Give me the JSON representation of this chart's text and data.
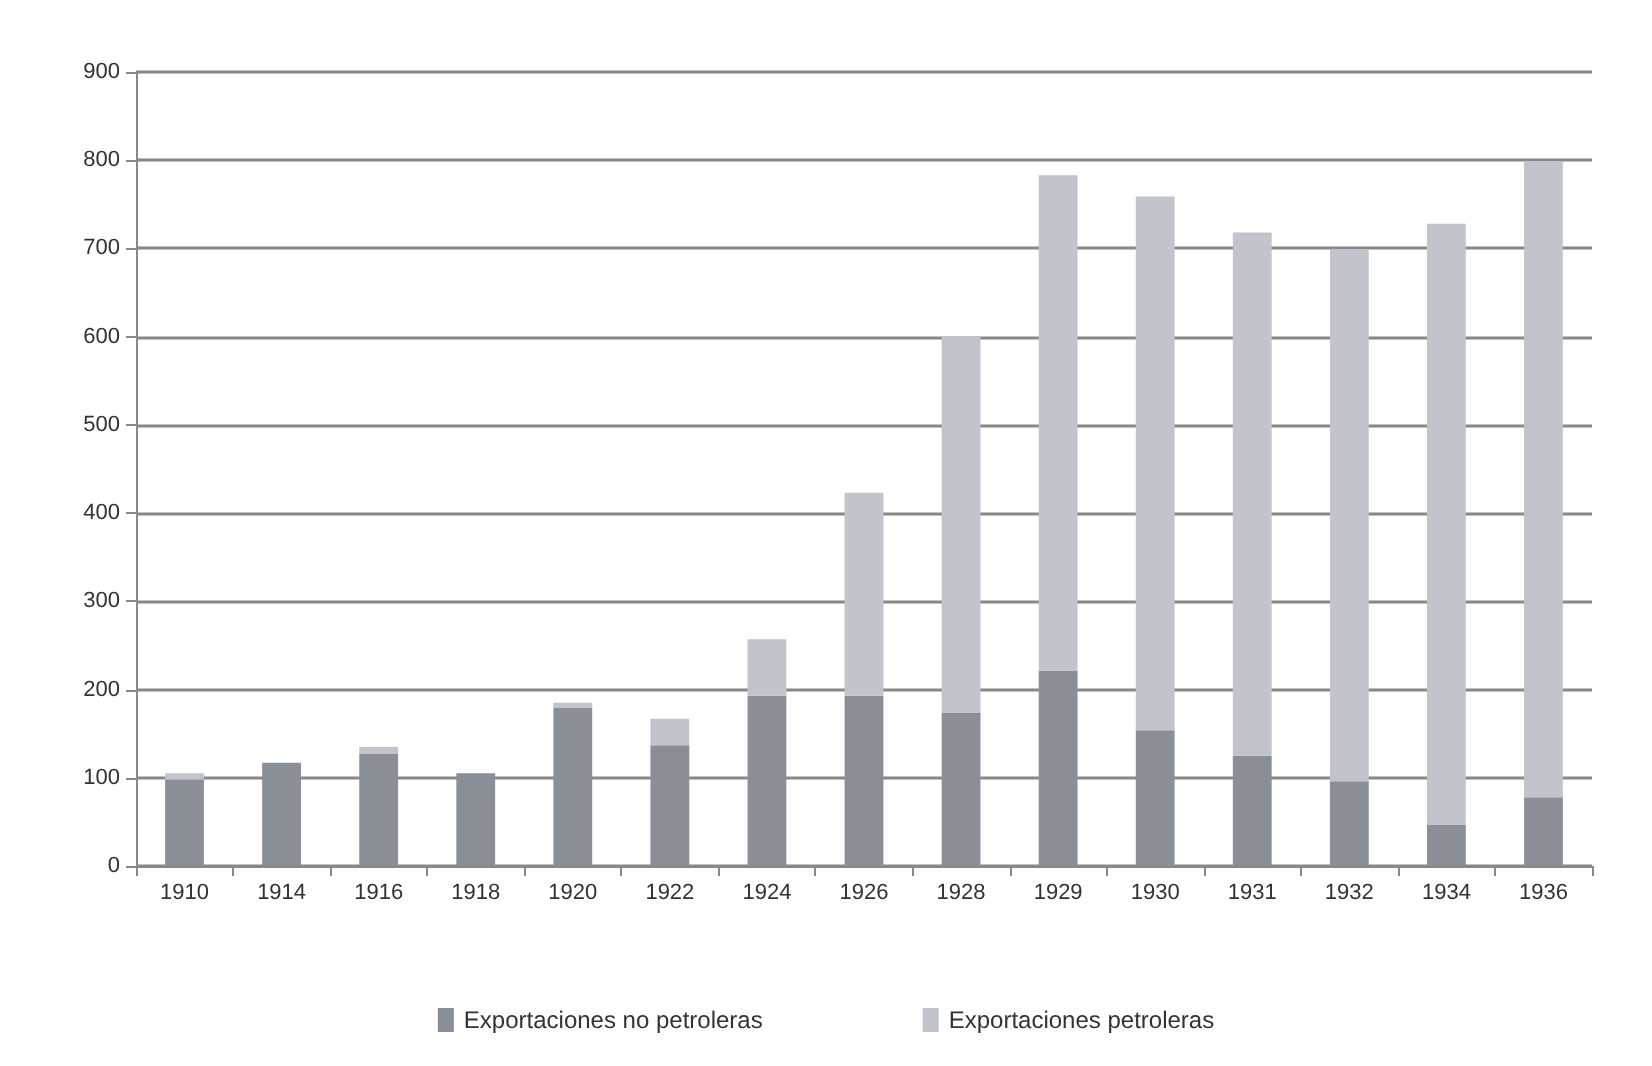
{
  "chart_data": {
    "type": "bar",
    "stacked": true,
    "categories": [
      "1910",
      "1914",
      "1916",
      "1918",
      "1920",
      "1922",
      "1924",
      "1926",
      "1928",
      "1929",
      "1930",
      "1931",
      "1932",
      "1934",
      "1936"
    ],
    "series": [
      {
        "name": "Exportaciones no petroleras",
        "color": "#8a8e96",
        "values": [
          98,
          117,
          127,
          105,
          179,
          137,
          193,
          193,
          174,
          221,
          154,
          125,
          96,
          47,
          78
        ]
      },
      {
        "name": "Exportaciones petroleras",
        "color": "#c2c4cb",
        "values": [
          7,
          null,
          8,
          0,
          6,
          30,
          64,
          230,
          426,
          562,
          605,
          593,
          603,
          681,
          721
        ]
      }
    ],
    "ylim": [
      0,
      900
    ],
    "yticks": [
      0,
      100,
      200,
      300,
      400,
      500,
      600,
      700,
      800,
      900
    ],
    "grid": "y",
    "legend": "bottom"
  }
}
